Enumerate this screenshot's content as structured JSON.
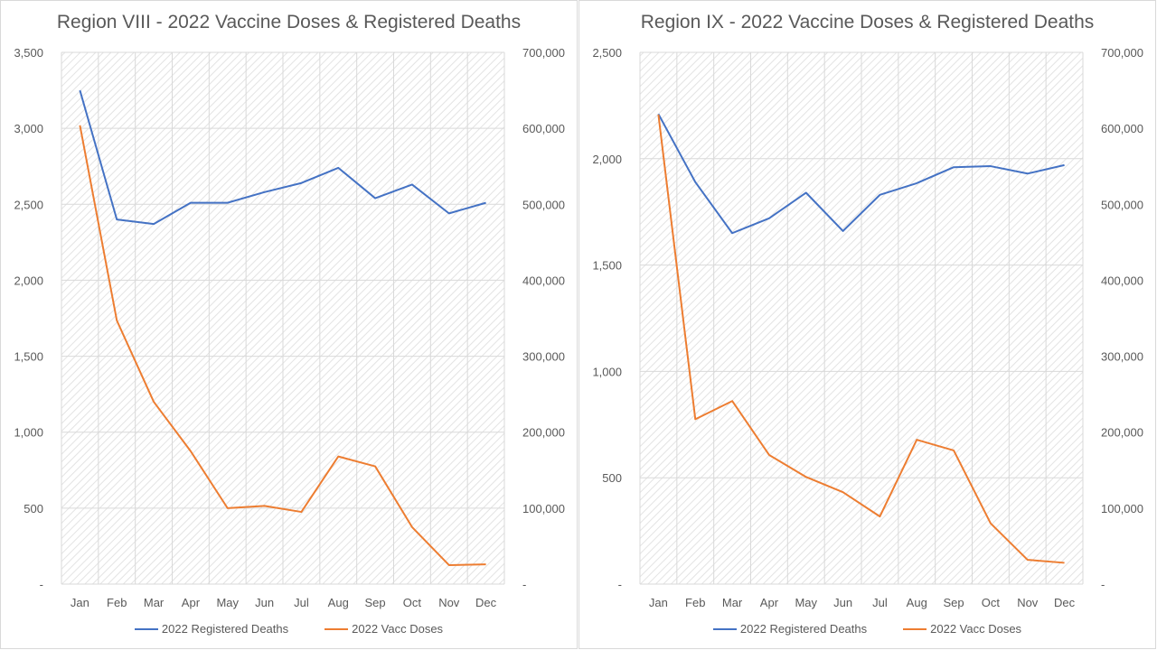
{
  "chart_data": [
    {
      "type": "line",
      "title": "Region VIII - 2022 Vaccine Doses & Registered Deaths",
      "categories": [
        "Jan",
        "Feb",
        "Mar",
        "Apr",
        "May",
        "Jun",
        "Jul",
        "Aug",
        "Sep",
        "Oct",
        "Nov",
        "Dec"
      ],
      "y_left": {
        "range": [
          0,
          3500
        ],
        "ticks": [
          "-",
          "500",
          "1,000",
          "1,500",
          "2,000",
          "2,500",
          "3,000",
          "3,500"
        ]
      },
      "y_right": {
        "range": [
          0,
          700000
        ],
        "ticks": [
          "-",
          "100,000",
          "200,000",
          "300,000",
          "400,000",
          "500,000",
          "600,000",
          "700,000"
        ]
      },
      "series": [
        {
          "name": "2022 Registered Deaths",
          "axis": "left",
          "color": "#4472C4",
          "values": [
            3250,
            2400,
            2370,
            2510,
            2510,
            2580,
            2640,
            2740,
            2540,
            2630,
            2440,
            2510
          ]
        },
        {
          "name": "2022 Vacc Doses",
          "axis": "right",
          "color": "#ED7D31",
          "values": [
            604000,
            347000,
            240000,
            175000,
            100000,
            103000,
            95000,
            168000,
            155000,
            75000,
            25000,
            26000
          ]
        }
      ],
      "grid": true,
      "legend_position": "bottom"
    },
    {
      "type": "line",
      "title": "Region IX - 2022 Vaccine Doses & Registered Deaths",
      "categories": [
        "Jan",
        "Feb",
        "Mar",
        "Apr",
        "May",
        "Jun",
        "Jul",
        "Aug",
        "Sep",
        "Oct",
        "Nov",
        "Dec"
      ],
      "y_left": {
        "range": [
          0,
          2500
        ],
        "ticks": [
          "-",
          "500",
          "1,000",
          "1,500",
          "2,000",
          "2,500"
        ]
      },
      "y_right": {
        "range": [
          0,
          700000
        ],
        "ticks": [
          "-",
          "100,000",
          "200,000",
          "300,000",
          "400,000",
          "500,000",
          "600,000",
          "700,000"
        ]
      },
      "series": [
        {
          "name": "2022 Registered Deaths",
          "axis": "left",
          "color": "#4472C4",
          "values": [
            2210,
            1890,
            1650,
            1720,
            1840,
            1660,
            1830,
            1885,
            1960,
            1965,
            1930,
            1970
          ]
        },
        {
          "name": "2022 Vacc Doses",
          "axis": "right",
          "color": "#ED7D31",
          "values": [
            618000,
            217000,
            241000,
            170000,
            141000,
            121000,
            89000,
            190000,
            176000,
            80000,
            32000,
            28000
          ]
        }
      ],
      "grid": true,
      "legend_position": "bottom"
    }
  ]
}
